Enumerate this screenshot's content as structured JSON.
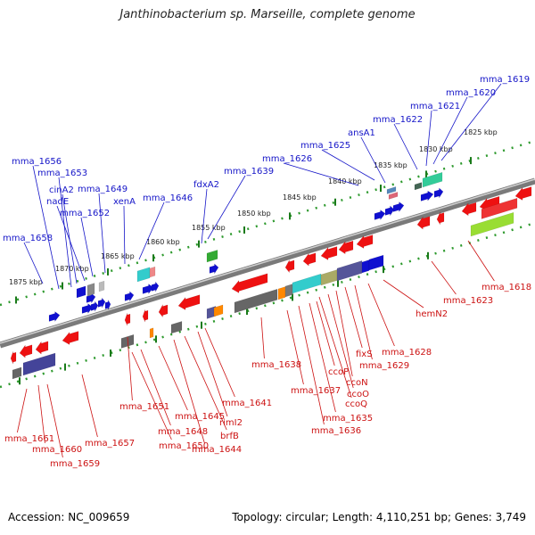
{
  "title": "Janthinobacterium sp. Marseille, complete genome",
  "footer": {
    "accession": "Accession: NC_009659",
    "stats": "Topology: circular; Length: 4,110,251 bp; Genes: 3,749"
  },
  "scale_ticks": [
    "1825 kbp",
    "1830 kbp",
    "1835 kbp",
    "1840 kbp",
    "1845 kbp",
    "1850 kbp",
    "1855 kbp",
    "1860 kbp",
    "1865 kbp",
    "1870 kbp",
    "1875 kbp"
  ],
  "forward_genes": [
    "mma_1619",
    "mma_1620",
    "mma_1621",
    "mma_1622",
    "ansA1",
    "mma_1625",
    "mma_1626",
    "mma_1639",
    "fdxA2",
    "mma_1646",
    "xenA",
    "mma_1649",
    "mma_1652",
    "nadE",
    "cinA2",
    "mma_1653",
    "mma_1656",
    "mma_1658"
  ],
  "reverse_genes": [
    "mma_1618",
    "mma_1623",
    "hemN2",
    "mma_1628",
    "mma_1629",
    "fixS",
    "ccoN",
    "ccoO",
    "ccoQ",
    "ccoP",
    "mma_1635",
    "mma_1636",
    "mma_1637",
    "mma_1638",
    "mma_1641",
    "rimI2",
    "brfB",
    "mma_1644",
    "mma_1645",
    "mma_1648",
    "mma_1650",
    "mma_1651",
    "mma_1657",
    "mma_1659",
    "mma_1660",
    "mma_1661"
  ]
}
